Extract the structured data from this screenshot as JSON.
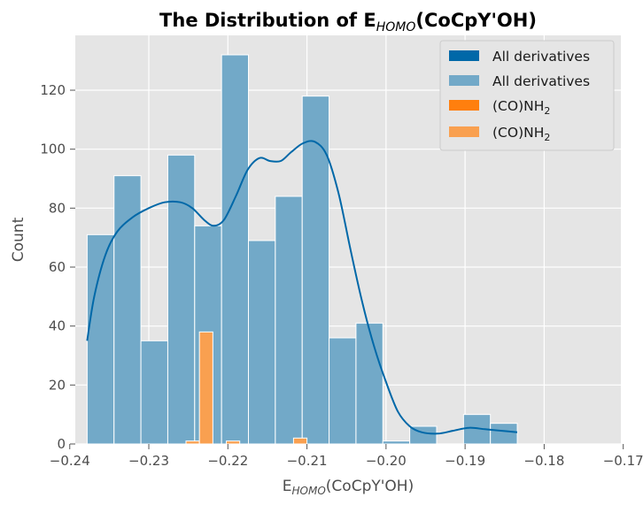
{
  "chart_data": {
    "type": "histogram",
    "title": {
      "main": "The Distribution of E",
      "sub": "HOMO",
      "suffix": "(CoCpY'OH)"
    },
    "xlabel": {
      "main": "E",
      "sub": "HOMO",
      "suffix": "(CoCpY'OH)"
    },
    "ylabel": "Count",
    "xlim": [
      -0.2393,
      -0.1703
    ],
    "ylim": [
      0,
      138.6
    ],
    "x_ticks": [
      -0.24,
      -0.23,
      -0.22,
      -0.21,
      -0.2,
      -0.19,
      -0.18,
      -0.17
    ],
    "x_tick_labels": [
      "−0.24",
      "−0.23",
      "−0.22",
      "−0.21",
      "−0.20",
      "−0.19",
      "−0.18",
      "−0.17"
    ],
    "y_ticks": [
      0,
      20,
      40,
      60,
      80,
      100,
      120
    ],
    "y_tick_labels": [
      "0",
      "20",
      "40",
      "60",
      "80",
      "100",
      "120"
    ],
    "grid": true,
    "legend_position": "top-right",
    "legend": [
      {
        "label": "All derivatives",
        "color": "#0068a8",
        "style": "solid"
      },
      {
        "label": "All derivatives",
        "color": "#72a9c8",
        "style": "light"
      },
      {
        "label": "(CO)NH",
        "sub": "2",
        "color": "#ff7f0e",
        "style": "solid"
      },
      {
        "label": "(CO)NH",
        "sub": "2",
        "color": "#f9a050",
        "style": "light"
      }
    ],
    "series": [
      {
        "name": "All derivatives",
        "color": "#72a9c8",
        "bins": [
          {
            "x0": -0.2378,
            "x1": -0.2344,
            "count": 71
          },
          {
            "x0": -0.2344,
            "x1": -0.231,
            "count": 91
          },
          {
            "x0": -0.231,
            "x1": -0.2276,
            "count": 35
          },
          {
            "x0": -0.2276,
            "x1": -0.2242,
            "count": 98
          },
          {
            "x0": -0.2242,
            "x1": -0.2208,
            "count": 74
          },
          {
            "x0": -0.2208,
            "x1": -0.2174,
            "count": 132
          },
          {
            "x0": -0.2174,
            "x1": -0.214,
            "count": 69
          },
          {
            "x0": -0.214,
            "x1": -0.2106,
            "count": 84
          },
          {
            "x0": -0.2106,
            "x1": -0.2072,
            "count": 118
          },
          {
            "x0": -0.2072,
            "x1": -0.2038,
            "count": 36
          },
          {
            "x0": -0.2038,
            "x1": -0.2004,
            "count": 41
          },
          {
            "x0": -0.2004,
            "x1": -0.197,
            "count": 1
          },
          {
            "x0": -0.197,
            "x1": -0.1936,
            "count": 6
          },
          {
            "x0": -0.1936,
            "x1": -0.1902,
            "count": 0
          },
          {
            "x0": -0.1902,
            "x1": -0.1868,
            "count": 10
          },
          {
            "x0": -0.1868,
            "x1": -0.1834,
            "count": 7
          }
        ],
        "kde": [
          [
            -0.2378,
            35
          ],
          [
            -0.2369,
            50
          ],
          [
            -0.2355,
            64
          ],
          [
            -0.234,
            72
          ],
          [
            -0.232,
            77
          ],
          [
            -0.23,
            80
          ],
          [
            -0.228,
            82
          ],
          [
            -0.226,
            82
          ],
          [
            -0.2245,
            80
          ],
          [
            -0.223,
            76
          ],
          [
            -0.2218,
            74
          ],
          [
            -0.2205,
            76
          ],
          [
            -0.219,
            84
          ],
          [
            -0.2175,
            93
          ],
          [
            -0.216,
            97
          ],
          [
            -0.2147,
            96
          ],
          [
            -0.2133,
            96
          ],
          [
            -0.212,
            99
          ],
          [
            -0.2105,
            102
          ],
          [
            -0.209,
            102.5
          ],
          [
            -0.2075,
            98
          ],
          [
            -0.206,
            85
          ],
          [
            -0.2045,
            66
          ],
          [
            -0.203,
            48
          ],
          [
            -0.2015,
            33
          ],
          [
            -0.2,
            21
          ],
          [
            -0.1985,
            11
          ],
          [
            -0.197,
            6
          ],
          [
            -0.1955,
            4
          ],
          [
            -0.1935,
            3.5
          ],
          [
            -0.1915,
            4.5
          ],
          [
            -0.1895,
            5.5
          ],
          [
            -0.1875,
            5
          ],
          [
            -0.1855,
            4.5
          ],
          [
            -0.1834,
            4
          ]
        ]
      },
      {
        "name": "(CO)NH2",
        "color": "#f9a050",
        "bins": [
          {
            "x0": -0.2253,
            "x1": -0.2236,
            "count": 1
          },
          {
            "x0": -0.2236,
            "x1": -0.2219,
            "count": 38
          },
          {
            "x0": -0.2202,
            "x1": -0.2185,
            "count": 1
          },
          {
            "x0": -0.2117,
            "x1": -0.21,
            "count": 2
          }
        ]
      }
    ]
  }
}
